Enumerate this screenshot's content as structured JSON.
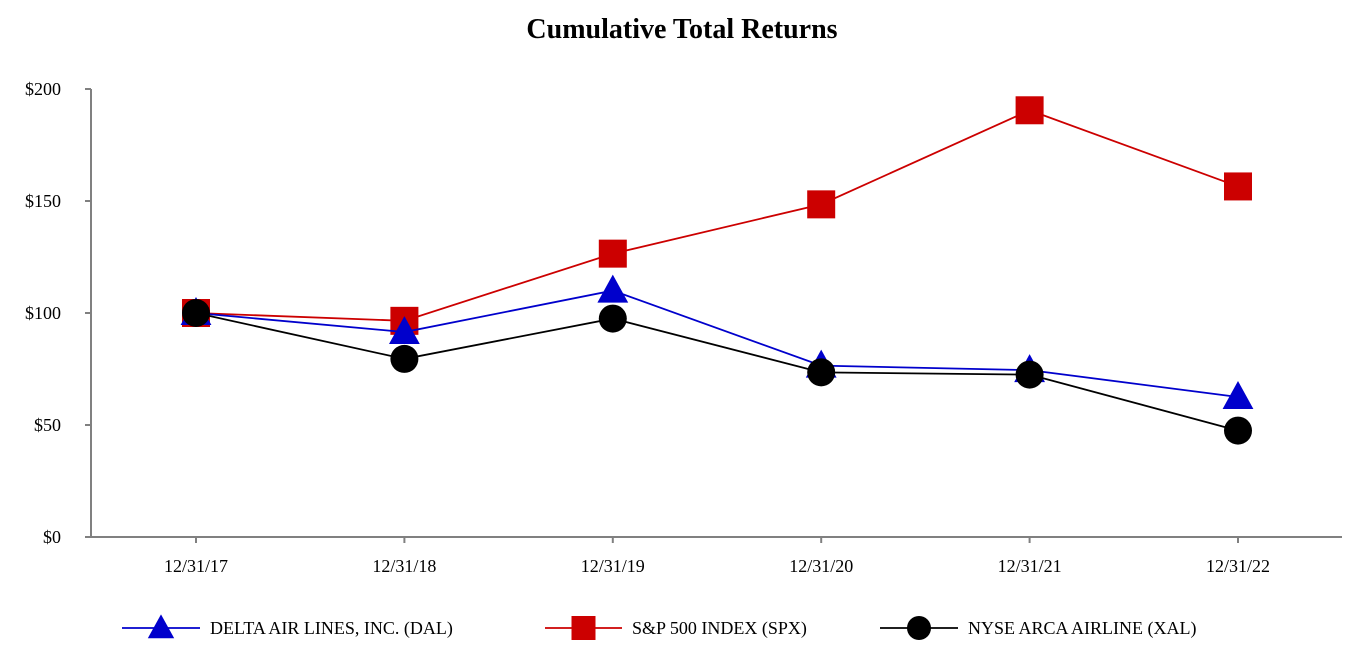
{
  "chart_data": {
    "type": "line",
    "title": "Cumulative Total Returns",
    "xlabel": "",
    "ylabel": "",
    "categories": [
      "12/31/17",
      "12/31/18",
      "12/31/19",
      "12/31/20",
      "12/31/21",
      "12/31/22"
    ],
    "ylim": [
      0,
      200
    ],
    "yticks": [
      0,
      50,
      100,
      150,
      200
    ],
    "ytick_labels": [
      "$0",
      "$50",
      "$100",
      "$150",
      "$200"
    ],
    "grid": false,
    "legend_position": "bottom",
    "series": [
      {
        "name": "DELTA AIR LINES, INC. (DAL)",
        "color": "#0000CC",
        "marker": "triangle",
        "values": [
          100,
          91.5,
          110,
          76.5,
          74.5,
          62.5
        ]
      },
      {
        "name": "S&P 500 INDEX (SPX)",
        "color": "#CC0000",
        "marker": "square",
        "values": [
          100,
          96.5,
          126.5,
          148.5,
          190.5,
          156.5
        ]
      },
      {
        "name": "NYSE ARCA AIRLINE (XAL)",
        "color": "#000000",
        "marker": "circle",
        "values": [
          100,
          79.5,
          97.5,
          73.5,
          72.5,
          47.5
        ]
      }
    ]
  }
}
